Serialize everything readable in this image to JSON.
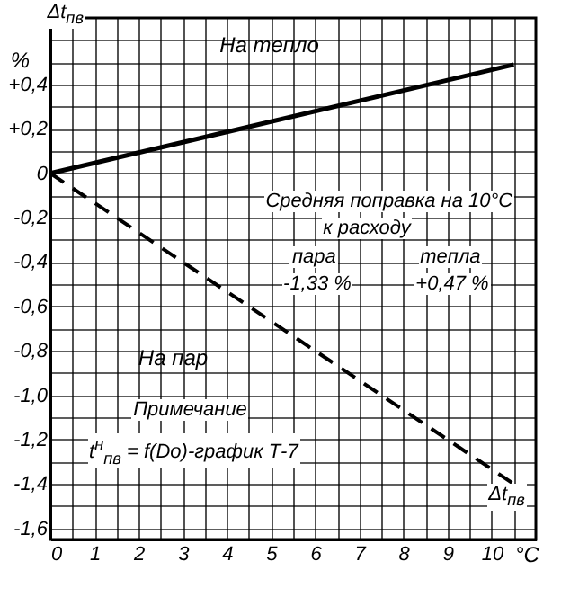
{
  "chart_data": {
    "type": "line",
    "xlabel": "°C",
    "ylabel": "%",
    "x": [
      0,
      10.5
    ],
    "series": [
      {
        "name": "На тепло",
        "color": "#000000",
        "values": [
          0,
          0.49
        ],
        "line_style": "solid"
      },
      {
        "name": "На пар",
        "color": "#000000",
        "values": [
          0,
          -1.4
        ],
        "line_style": "dashed"
      }
    ],
    "xlim": [
      0,
      11
    ],
    "ylim": [
      -1.65,
      0.7
    ],
    "xticks": [
      0,
      {
        "value": 0.5,
        "label": null
      },
      1,
      {
        "value": 1.5,
        "label": null
      },
      2,
      {
        "value": 2.5,
        "label": null
      },
      3,
      {
        "value": 3.5,
        "label": null
      },
      4,
      {
        "value": 4.5,
        "label": null
      },
      5,
      {
        "value": 5.5,
        "label": null
      },
      6,
      {
        "value": 6.5,
        "label": null
      },
      7,
      {
        "value": 7.5,
        "label": null
      },
      8,
      {
        "value": 8.5,
        "label": null
      },
      9,
      {
        "value": 9.5,
        "label": null
      },
      10,
      {
        "value": 10.5,
        "label": null
      }
    ],
    "yticks": [
      {
        "value": 0.6,
        "label": null
      },
      {
        "value": 0.5,
        "label": null
      },
      {
        "value": 0.4,
        "label": "+0,4"
      },
      {
        "value": 0.3,
        "label": null
      },
      {
        "value": 0.2,
        "label": "+0,2"
      },
      {
        "value": 0.1,
        "label": null
      },
      0,
      {
        "value": -0.1,
        "label": null
      },
      {
        "value": -0.2,
        "label": "-0,2"
      },
      {
        "value": -0.3,
        "label": null
      },
      {
        "value": -0.4,
        "label": "-0,4"
      },
      {
        "value": -0.5,
        "label": null
      },
      {
        "value": -0.6,
        "label": "-0,6"
      },
      {
        "value": -0.7,
        "label": null
      },
      {
        "value": -0.8,
        "label": "-0,8"
      },
      {
        "value": -0.9,
        "label": null
      },
      {
        "value": -1.0,
        "label": "-1,0"
      },
      {
        "value": -1.1,
        "label": null
      },
      {
        "value": -1.2,
        "label": "-1,2"
      },
      {
        "value": -1.3,
        "label": null
      },
      {
        "value": -1.4,
        "label": "-1,4"
      },
      {
        "value": -1.5,
        "label": null
      },
      {
        "value": -1.6,
        "label": "-1,6"
      }
    ],
    "grid": true,
    "legend": false,
    "marker": "none",
    "annotations": [
      "Δt$_{пв}$",
      "Δt$_{пв}$",
      "Средняя поправка на 10°C",
      "к расходу",
      "пара",
      "тепла",
      "-1,33 %",
      "+0,47 %",
      "Примечание",
      "t$^{н}$$_{пв}$ = f(Dо)-график Т-7"
    ]
  }
}
